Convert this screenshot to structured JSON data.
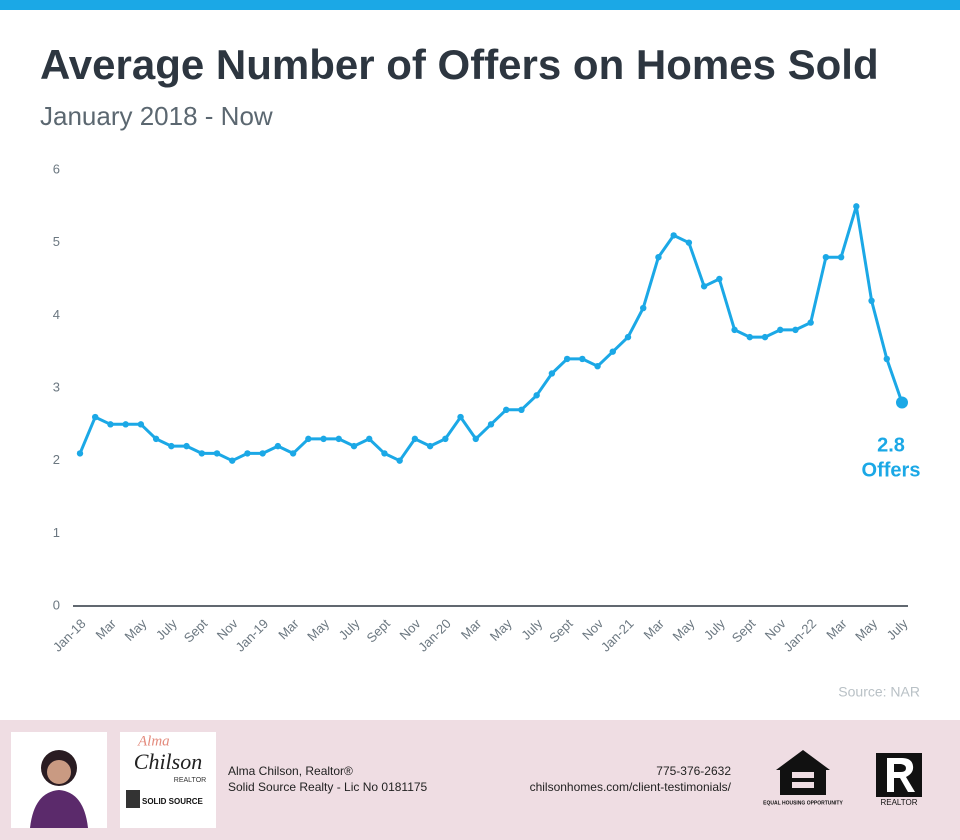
{
  "chart_data": {
    "type": "line",
    "title": "Average Number of Offers on Homes Sold",
    "subtitle": "January 2018 - Now",
    "source": "Source: NAR",
    "annotation": [
      "2.8",
      "Offers"
    ],
    "categories": [
      "Jan-18",
      null,
      "Mar",
      null,
      "May",
      null,
      "July",
      null,
      "Sept",
      null,
      "Nov",
      null,
      "Jan-19",
      null,
      "Mar",
      null,
      "May",
      null,
      "July",
      null,
      "Sept",
      null,
      "Nov",
      null,
      "Jan-20",
      null,
      "Mar",
      null,
      "May",
      null,
      "July",
      null,
      "Sept",
      null,
      "Nov",
      null,
      "Jan-21",
      null,
      "Mar",
      null,
      "May",
      null,
      "July",
      null,
      "Sept",
      null,
      "Nov",
      null,
      "Jan-22",
      null,
      "Mar",
      null,
      "May",
      null,
      "July"
    ],
    "series": [
      {
        "name": "Average Number of Offers",
        "color": "#1ba8e6",
        "values": [
          2.1,
          2.6,
          2.5,
          2.5,
          2.5,
          2.3,
          2.2,
          2.2,
          2.1,
          2.1,
          2.0,
          2.1,
          2.1,
          2.2,
          2.1,
          2.3,
          2.3,
          2.3,
          2.2,
          2.3,
          2.1,
          2.0,
          2.3,
          2.2,
          2.3,
          2.6,
          2.3,
          2.5,
          2.7,
          2.7,
          2.9,
          3.2,
          3.4,
          3.4,
          3.3,
          3.5,
          3.7,
          4.1,
          4.8,
          5.1,
          5.0,
          4.4,
          4.5,
          3.8,
          3.7,
          3.7,
          3.8,
          3.8,
          3.9,
          4.8,
          4.8,
          5.5,
          4.2,
          3.4,
          2.8
        ]
      }
    ],
    "ylim": [
      0,
      6
    ],
    "yticks": [
      0,
      1,
      2,
      3,
      4,
      5,
      6
    ],
    "grid": false
  },
  "footer": {
    "logo_script": "Alma",
    "logo_name": "Chilson",
    "logo_role": "REALTOR",
    "brokerage_logo": "SOLID SOURCE",
    "agent": "Alma Chilson, Realtor®",
    "company": "Solid Source Realty - Lic No 0181175",
    "phone": "775-376-2632",
    "url": "chilsonhomes.com/client-testimonials/",
    "eho": "EQUAL HOUSING OPPORTUNITY",
    "realtor_mark": "REALTOR"
  }
}
